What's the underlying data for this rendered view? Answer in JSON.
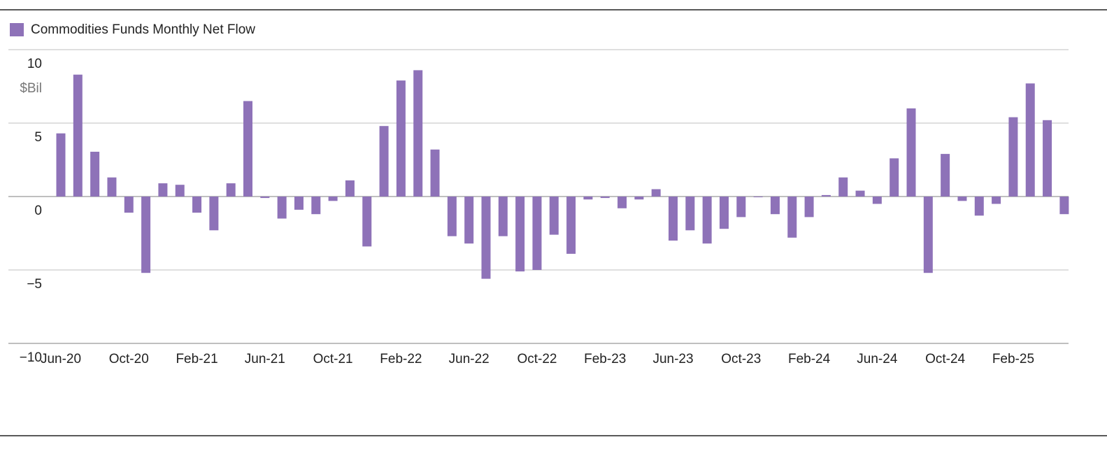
{
  "chart_data": {
    "type": "bar",
    "categories": [
      "Jun-20",
      null,
      null,
      null,
      "Oct-20",
      null,
      null,
      null,
      "Feb-21",
      null,
      null,
      null,
      "Jun-21",
      null,
      null,
      null,
      "Oct-21",
      null,
      null,
      null,
      "Feb-22",
      null,
      null,
      null,
      "Jun-22",
      null,
      null,
      null,
      "Oct-22",
      null,
      null,
      null,
      "Feb-23",
      null,
      null,
      null,
      "Jun-23",
      null,
      null,
      null,
      "Oct-23",
      null,
      null,
      null,
      "Feb-24",
      null,
      null,
      null,
      "Jun-24",
      null,
      null,
      null,
      "Oct-24",
      null,
      null,
      null,
      "Feb-25",
      null,
      null,
      null
    ],
    "series": [
      {
        "name": "Commodities Funds Monthly Net Flow",
        "color": "#8e72b8",
        "values": [
          4.3,
          8.3,
          3.05,
          1.3,
          -1.1,
          -5.2,
          0.9,
          0.8,
          -1.1,
          -2.3,
          0.9,
          6.5,
          -0.1,
          -1.5,
          -0.9,
          -1.2,
          -0.3,
          1.1,
          -3.4,
          4.8,
          7.9,
          8.6,
          3.2,
          -2.7,
          -3.2,
          -5.6,
          -2.7,
          -5.1,
          -5.0,
          -2.6,
          -3.9,
          -0.2,
          -0.1,
          -0.8,
          -0.2,
          0.5,
          -3.0,
          -2.3,
          -3.2,
          -2.2,
          -1.4,
          -0.05,
          -1.2,
          -2.8,
          -1.4,
          0.1,
          1.3,
          0.4,
          -0.5,
          2.6,
          6.0,
          -5.2,
          2.9,
          -0.3,
          -1.3,
          -0.5,
          5.4,
          7.7,
          5.2,
          -1.2
        ]
      }
    ],
    "y_axis_label": "$Bil",
    "ylim": [
      -10,
      10
    ],
    "yticks": [
      {
        "value": -10,
        "label": "−10"
      },
      {
        "value": -5,
        "label": "−5"
      },
      0,
      5,
      10
    ],
    "grid": true,
    "legend": "top-left"
  }
}
